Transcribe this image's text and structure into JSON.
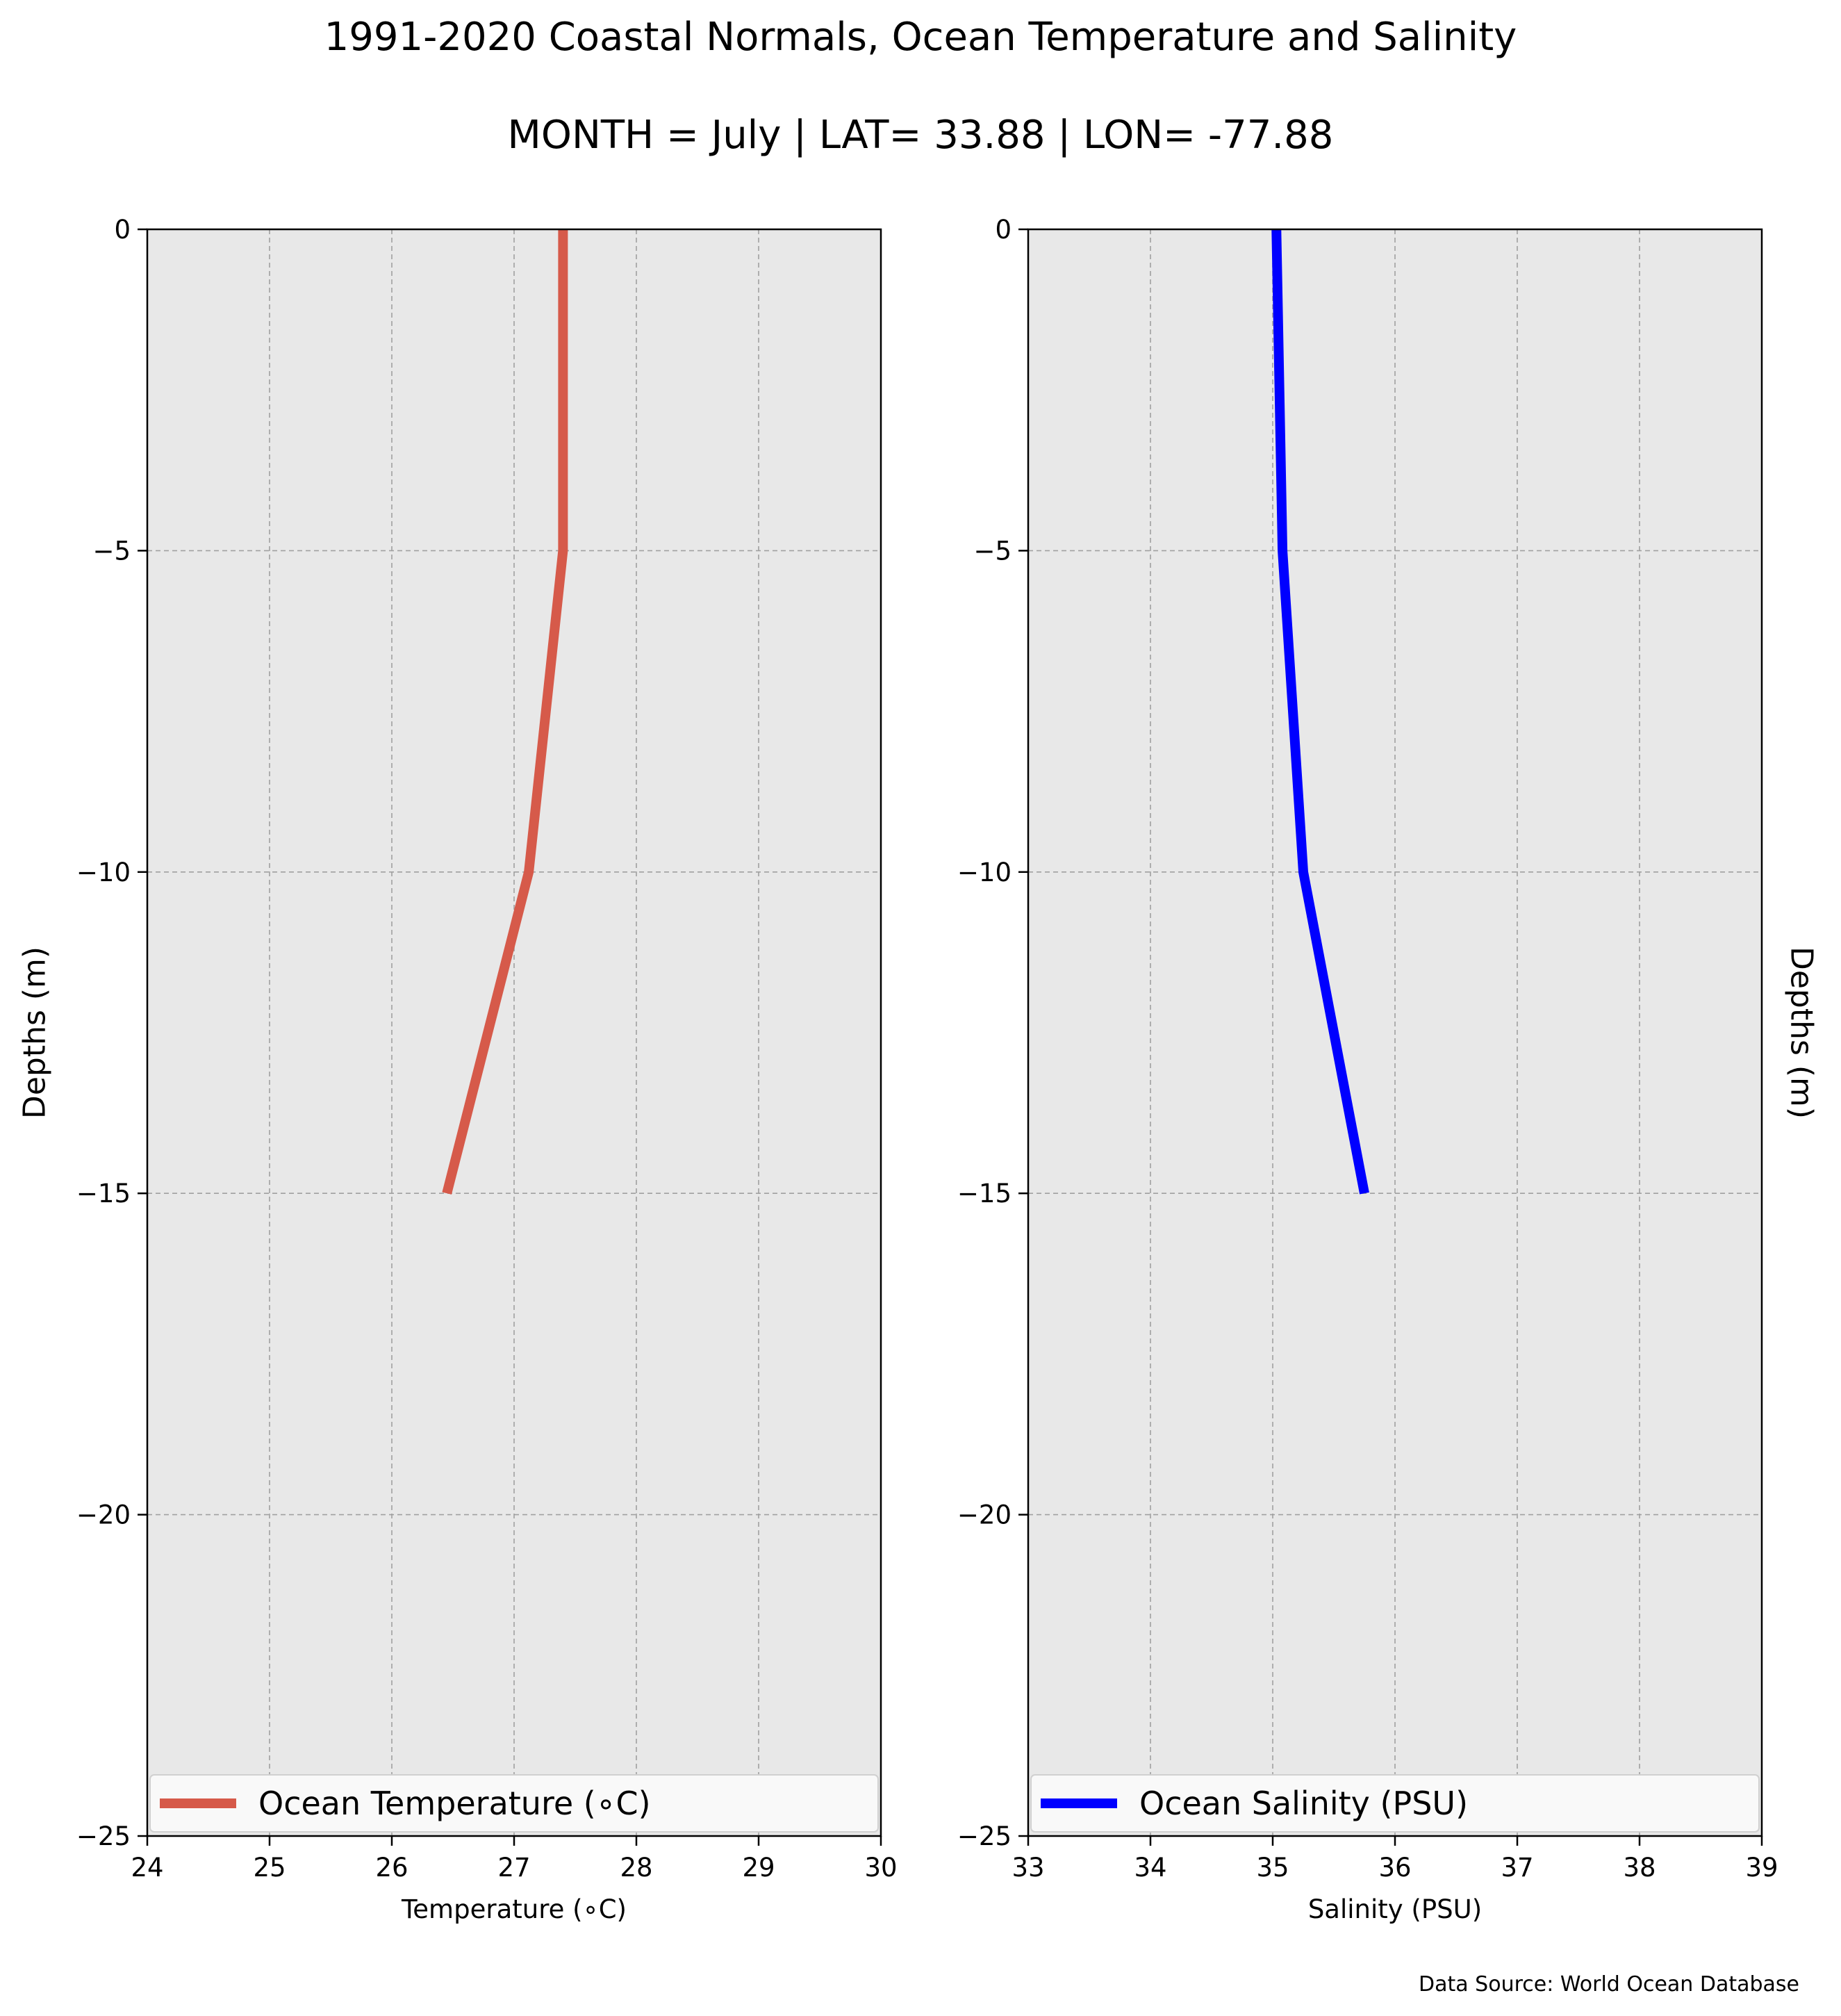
{
  "figure": {
    "title": "1991-2020 Coastal Normals, Ocean Temperature and Salinity",
    "subtitle": "MONTH = July | LAT= 33.88 | LON= -77.88",
    "source_note": "Data Source: World Ocean Database",
    "background_color": "#e8e8e8",
    "grid_color": "#a0a0a0"
  },
  "chart_data": [
    {
      "type": "line",
      "xlabel": "Temperature (∘C)",
      "ylabel": "Depths (m)",
      "ylabel_side": "left",
      "xlim": [
        24,
        30
      ],
      "ylim": [
        -25,
        0
      ],
      "xticks": [
        24,
        25,
        26,
        27,
        28,
        29,
        30
      ],
      "xtick_labels": [
        "24",
        "25",
        "26",
        "27",
        "28",
        "29",
        "30"
      ],
      "yticks": [
        0,
        -5,
        -10,
        -15,
        -20,
        -25
      ],
      "ytick_labels": [
        "0",
        "−5",
        "−10",
        "−15",
        "−20",
        "−25"
      ],
      "grid": true,
      "legend": "lower-center",
      "series": [
        {
          "name": "Ocean Temperature (∘C)",
          "color": "#d65a4a",
          "x": [
            27.4,
            27.4,
            27.12,
            26.45
          ],
          "y": [
            0,
            -5,
            -10,
            -15
          ]
        }
      ]
    },
    {
      "type": "line",
      "xlabel": "Salinity (PSU)",
      "ylabel": "Depths (m)",
      "ylabel_side": "right",
      "xlim": [
        33,
        39
      ],
      "ylim": [
        -25,
        0
      ],
      "xticks": [
        33,
        34,
        35,
        36,
        37,
        38,
        39
      ],
      "xtick_labels": [
        "33",
        "34",
        "35",
        "36",
        "37",
        "38",
        "39"
      ],
      "yticks": [
        0,
        -5,
        -10,
        -15,
        -20,
        -25
      ],
      "ytick_labels": [
        "0",
        "−5",
        "−10",
        "−15",
        "−20",
        "−25"
      ],
      "grid": true,
      "legend": "lower-center",
      "series": [
        {
          "name": "Ocean Salinity (PSU)",
          "color": "#0000ff",
          "x": [
            35.03,
            35.08,
            35.25,
            35.75
          ],
          "y": [
            0,
            -5,
            -10,
            -15
          ]
        }
      ]
    }
  ]
}
